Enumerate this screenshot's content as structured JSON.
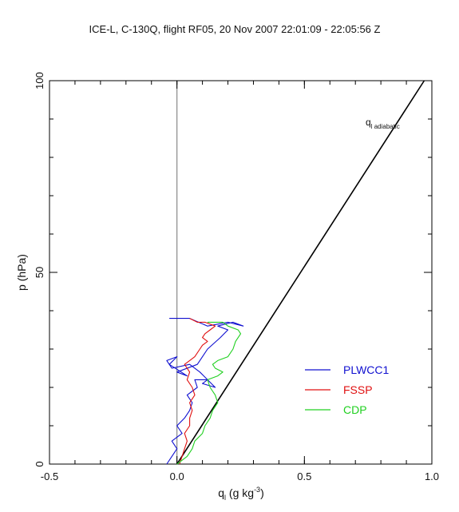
{
  "chart_data": {
    "type": "line",
    "title": "ICE-L, C-130Q, flight RF05, 20 Nov 2007  22:01:09 - 22:05:56 Z",
    "xlabel": {
      "main": "q",
      "sub": "l",
      "tail": " (g kg",
      "sup": "-3",
      "end": ")"
    },
    "ylabel": "p (hPa)",
    "xlim": [
      -0.5,
      1.0
    ],
    "ylim": [
      0,
      100
    ],
    "xticks": [
      "-0.5",
      "0.0",
      "0.5",
      "1.0"
    ],
    "xtick_values": [
      -0.5,
      0.0,
      0.5,
      1.0
    ],
    "yticks": [
      "0",
      "50",
      "100"
    ],
    "ytick_values": [
      0,
      50,
      100
    ],
    "grid": false,
    "reference_line_x": 0.0,
    "adiabatic": {
      "label_main": "q",
      "label_sub": "l adiabatic",
      "color": "#000000",
      "x": [
        0.0,
        0.97
      ],
      "y": [
        0,
        100
      ]
    },
    "legend_position": "lower-right",
    "series": [
      {
        "name": "PLWCC1",
        "color": "#1010d0",
        "x": [
          -0.04,
          -0.02,
          0.0,
          -0.02,
          0.02,
          0.0,
          0.03,
          0.05,
          0.06,
          0.04,
          0.08,
          0.07,
          0.12,
          0.1,
          0.15,
          0.09,
          0.05,
          -0.02,
          -0.04,
          0.0,
          -0.03,
          0.04,
          0.0,
          0.08,
          0.12,
          0.17,
          0.2,
          0.16,
          0.22,
          0.26,
          0.2,
          0.12,
          0.05,
          -0.03
        ],
        "y": [
          0,
          2,
          4,
          6,
          8,
          10,
          12,
          14,
          16,
          18,
          20,
          22,
          22,
          21,
          20,
          24,
          26,
          25,
          27,
          28,
          26,
          23,
          24,
          26,
          30,
          33,
          35,
          36,
          37,
          36,
          37,
          36,
          38,
          38
        ]
      },
      {
        "name": "FSSP",
        "color": "#e01010",
        "x": [
          0.01,
          0.02,
          0.03,
          0.04,
          0.03,
          0.05,
          0.05,
          0.06,
          0.05,
          0.07,
          0.06,
          0.04,
          0.05,
          0.03,
          0.05,
          0.07,
          0.09,
          0.1,
          0.12,
          0.1,
          0.11,
          0.13,
          0.15,
          0.11,
          0.08,
          0.05
        ],
        "y": [
          0,
          2,
          4,
          6,
          8,
          10,
          12,
          14,
          16,
          18,
          20,
          22,
          24,
          26,
          27,
          28,
          30,
          31,
          32,
          33,
          34,
          35,
          36,
          37,
          37,
          38
        ]
      },
      {
        "name": "CDP",
        "color": "#20d020",
        "x": [
          0.0,
          0.04,
          0.06,
          0.07,
          0.1,
          0.11,
          0.13,
          0.14,
          0.16,
          0.15,
          0.13,
          0.12,
          0.16,
          0.18,
          0.15,
          0.14,
          0.16,
          0.2,
          0.22,
          0.23,
          0.25,
          0.24,
          0.2,
          0.18,
          0.14,
          0.12
        ],
        "y": [
          0,
          2,
          4,
          6,
          8,
          10,
          12,
          14,
          16,
          18,
          20,
          22,
          23,
          24,
          25,
          26,
          27,
          28,
          30,
          32,
          34,
          35,
          36,
          37,
          37,
          37
        ]
      }
    ]
  }
}
